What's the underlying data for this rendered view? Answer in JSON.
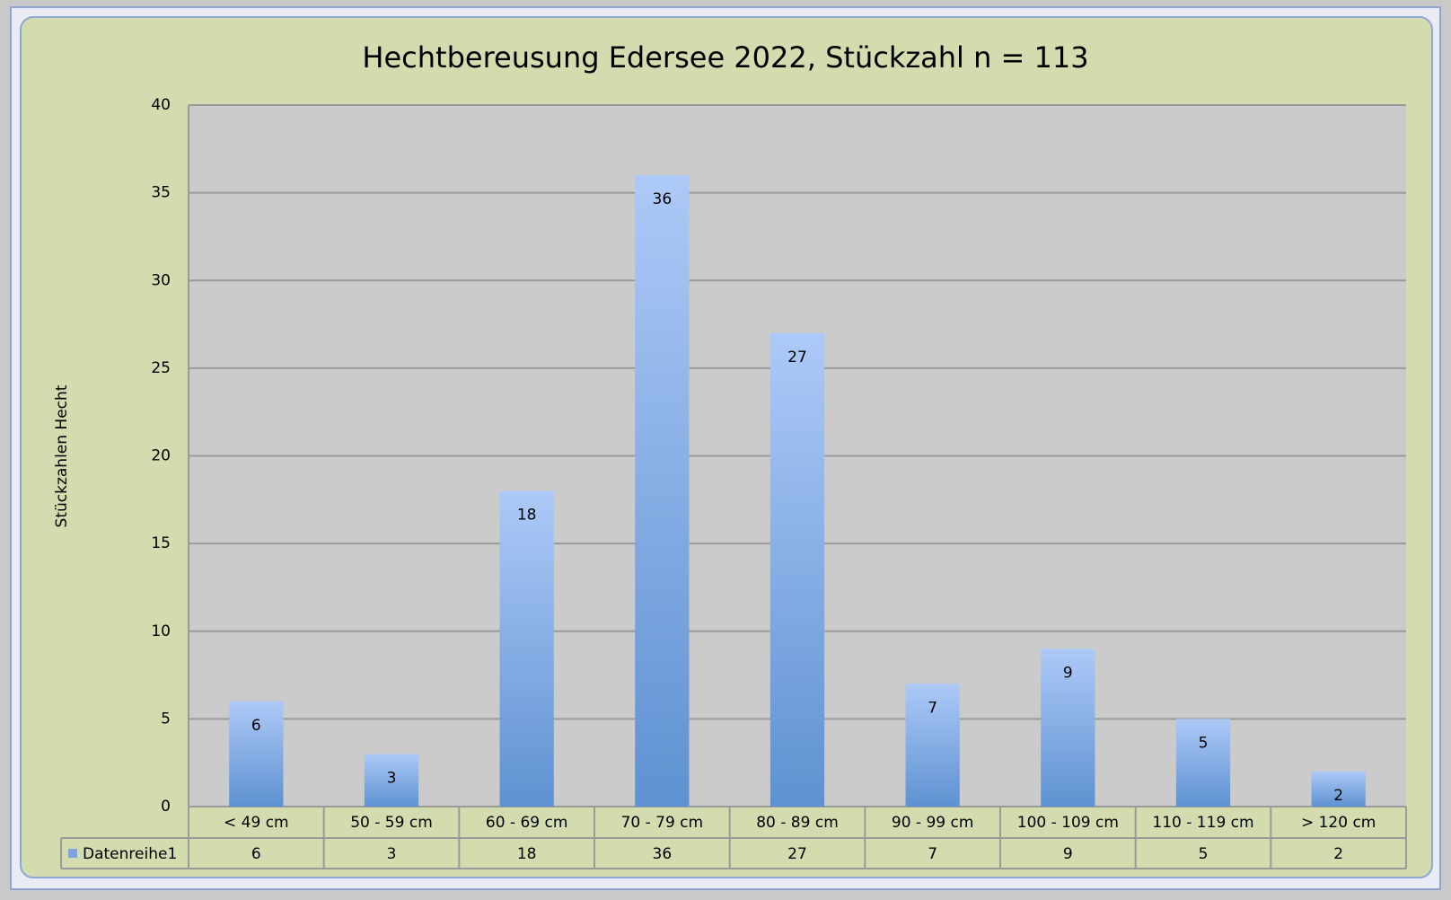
{
  "chart_data": {
    "type": "bar",
    "title": "Hechtbereusung Edersee 2022, Stückzahl n = 113",
    "y_label": "Stückzahlen Hecht",
    "categories": [
      "< 49 cm",
      "50 - 59 cm",
      "60 - 69 cm",
      "70 - 79 cm",
      "80 - 89 cm",
      "90 - 99 cm",
      "100 - 109 cm",
      "110 - 119 cm",
      "> 120 cm"
    ],
    "series": [
      {
        "name": "Datenreihe1",
        "color": "#7aa3e0",
        "values": [
          6,
          3,
          18,
          36,
          27,
          7,
          9,
          5,
          2
        ]
      }
    ],
    "ylim": [
      0,
      40
    ],
    "yticks": [
      0,
      5,
      10,
      15,
      20,
      25,
      30,
      35,
      40
    ],
    "grid": true
  }
}
